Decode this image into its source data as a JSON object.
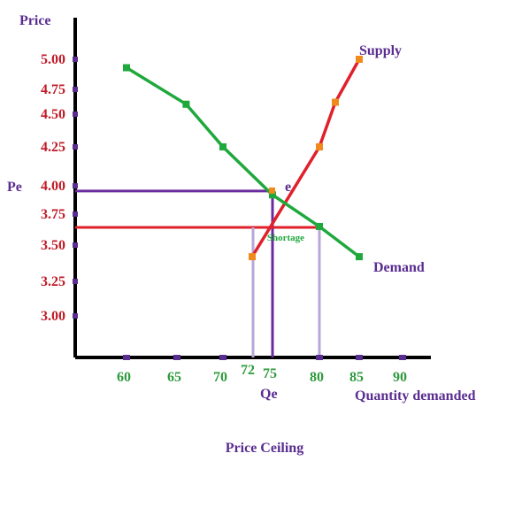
{
  "chart_data": {
    "type": "line",
    "title": "Price Ceiling",
    "xlabel": "Quantity demanded",
    "ylabel": "Price",
    "y_ticks": [
      "5.00",
      "4.75",
      "4.50",
      "4.25",
      "4.00",
      "3.75",
      "3.50",
      "3.25",
      "3.00"
    ],
    "x_ticks": [
      "60",
      "65",
      "70",
      "72",
      "75",
      "80",
      "85",
      "90"
    ],
    "series": [
      {
        "name": "Supply",
        "color": "#e0202a",
        "marker_color": "#f08a1c",
        "points": [
          [
            72,
            3.42
          ],
          [
            80,
            4.25
          ],
          [
            82,
            4.62
          ],
          [
            85,
            5.0
          ]
        ]
      },
      {
        "name": "Demand",
        "color": "#1fa83c",
        "marker_color": "#1fa83c",
        "points": [
          [
            60,
            4.93
          ],
          [
            66,
            4.6
          ],
          [
            70,
            4.25
          ],
          [
            75,
            3.92
          ],
          [
            80,
            3.65
          ],
          [
            85,
            3.42
          ]
        ]
      }
    ],
    "equilibrium": {
      "price_label": "Pe",
      "quantity_label": "Qe",
      "point_label": "e",
      "price": 3.97,
      "quantity": 75
    },
    "ceiling": {
      "price": 3.65,
      "qs": 72,
      "qd": 80,
      "label": "Shortage"
    }
  },
  "colors": {
    "axis": "#000000",
    "tick_marker": "#5a2d91",
    "price_tick_text": "#c01a26",
    "quantity_tick_text": "#2e9b3c",
    "equilibrium_line": "#6a2ba0",
    "ceiling_line": "#e0202a",
    "drop_line": "#b8a6d9",
    "label_text": "#5a2d91"
  }
}
